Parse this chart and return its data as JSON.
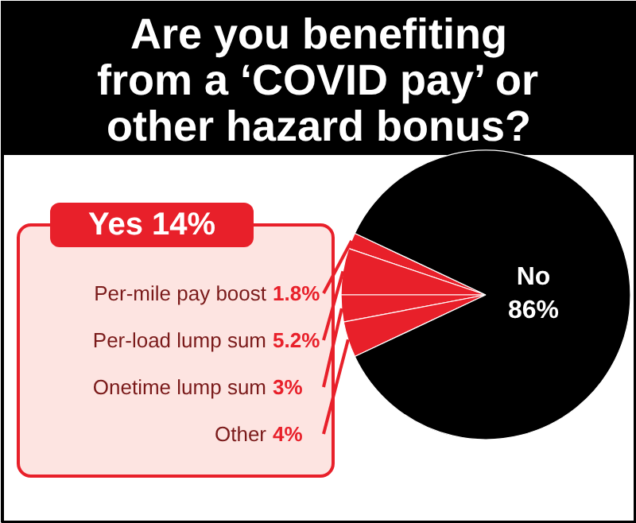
{
  "chart_data": {
    "type": "pie",
    "title": "Are you benefiting from a ‘COVID pay’ or other hazard bonus?",
    "categories": [
      "Per-mile pay boost",
      "Per-load lump sum",
      "Onetime lump sum",
      "Other",
      "No"
    ],
    "values": [
      1.8,
      5.2,
      3,
      4,
      86
    ],
    "colors": [
      "#e8202a",
      "#e8202a",
      "#e8202a",
      "#e8202a",
      "#000000"
    ],
    "value_labels": [
      "1.8%",
      "5.2%",
      "3%",
      "4%",
      "86%"
    ],
    "annotations": [
      "Yes 14%"
    ]
  }
}
